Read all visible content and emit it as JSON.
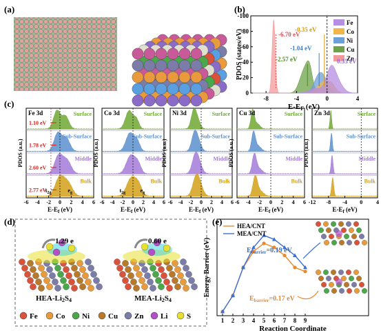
{
  "panels": {
    "a": {
      "label": "(a)"
    },
    "b": {
      "label": "(b)",
      "ylabel": "PDOS (states/eV)",
      "xlabel": "E-E",
      "xlabel_sub": "F",
      "xlabel_unit": " (eV)",
      "yticks": [
        "-100",
        "-80",
        "-60",
        "-40",
        "-20",
        "0"
      ],
      "xticks": [
        "-8",
        "-4",
        "0",
        "4"
      ],
      "legend": [
        {
          "name": "Fe",
          "color": "#b68ee2"
        },
        {
          "name": "Co",
          "color": "#f3b548"
        },
        {
          "name": "Ni",
          "color": "#6f9fd6"
        },
        {
          "name": "Cu",
          "color": "#6fa24a"
        },
        {
          "name": "Zn",
          "color": "#f29a9a"
        }
      ],
      "annotations": [
        {
          "text": "-6.70 eV",
          "color": "#e05050"
        },
        {
          "text": "-0.35 eV",
          "color": "#d79a10"
        },
        {
          "text": "-1.04 eV",
          "color": "#3e7cc4"
        },
        {
          "text": "-2.57 eV",
          "color": "#4b8a2b"
        },
        {
          "text": "0.35 eV",
          "color": "#9b6ad6"
        }
      ]
    },
    "c": {
      "label": "(c)",
      "ylabel": "PDOS (a.u.)",
      "xlabel": "E-E",
      "xlabel_sub": "f",
      "xlabel_unit": " (eV)",
      "layers": [
        "Surface",
        "Sub-Surface",
        "Middle",
        "Bulk"
      ],
      "layer_colors": [
        "#6fa832",
        "#5b8fce",
        "#a47ad8",
        "#d4a017"
      ],
      "subplots": [
        {
          "title": "Fe 3d",
          "xticks": [
            "-6",
            "-4",
            "-2",
            "0",
            "2",
            "4",
            "6"
          ],
          "gaps": [
            "1.10 eV",
            "1.78 eV",
            "2.60 eV",
            "2.77 eV"
          ],
          "t2g": "t",
          "t2g_sub": "2g",
          "eg": "e",
          "eg_sub": "g"
        },
        {
          "title": "Co 3d",
          "xticks": [
            "-6",
            "-4",
            "-2",
            "0",
            "2",
            "4",
            "6"
          ],
          "t2g": "t",
          "t2g_sub": "2g",
          "eg": "e",
          "eg_sub": "g"
        },
        {
          "title": "Ni 3d",
          "xticks": [
            "-6",
            "-4",
            "-2",
            "0",
            "2",
            "4",
            "6"
          ]
        },
        {
          "title": "Cu 3d",
          "xticks": [
            "-6",
            "-4",
            "-2",
            "0",
            "2",
            "4",
            "6"
          ]
        },
        {
          "title": "Zn 3d",
          "xticks": [
            "-12",
            "-8",
            "-4",
            "0",
            "4"
          ]
        }
      ]
    },
    "d": {
      "label": "(d)",
      "left": {
        "charge": "1.29 e",
        "caption": "HEA-Li",
        "caption_sub": "2",
        "caption_rest": "S",
        "caption_sub2": "4"
      },
      "right": {
        "charge": "0.60 e",
        "caption": "MEA-Li",
        "caption_sub": "2",
        "caption_rest": "S",
        "caption_sub2": "4"
      },
      "legend": [
        {
          "name": "Fe",
          "color": "#d9533c"
        },
        {
          "name": "Co",
          "color": "#e89a3c"
        },
        {
          "name": "Ni",
          "color": "#4aa84a"
        },
        {
          "name": "Cu",
          "color": "#b8792a"
        },
        {
          "name": "Zn",
          "color": "#7c7ca8"
        },
        {
          "name": "Li",
          "color": "#b44fc7"
        },
        {
          "name": "S",
          "color": "#e8e030"
        }
      ]
    },
    "e": {
      "label": "(e)"
    }
  },
  "chart_data": {
    "type": "line",
    "title": "",
    "xlabel": "Reaction Coordinate",
    "ylabel": "Energy Barrier (eV)",
    "x": [
      1,
      2,
      3,
      4,
      5,
      6,
      7,
      8,
      9
    ],
    "xlim": [
      1,
      9
    ],
    "ylim": [
      0,
      0.22
    ],
    "series": [
      {
        "name": "HEA/CNT",
        "color": "#e88a30",
        "marker": "circle",
        "values": [
          0.0,
          0.04,
          0.11,
          0.15,
          0.17,
          0.16,
          0.14,
          0.11,
          0.1
        ]
      },
      {
        "name": "MEA/CNT",
        "color": "#3a6fd4",
        "marker": "triangle",
        "values": [
          0.0,
          0.04,
          0.11,
          0.16,
          0.19,
          0.18,
          0.16,
          0.14,
          0.11
        ]
      }
    ],
    "annotations": [
      {
        "text": "E",
        "sub": "barrier",
        "rest": "=0.19 eV",
        "color": "#3a6fd4"
      },
      {
        "text": "E",
        "sub": "barrier",
        "rest": "=0.17 eV",
        "color": "#e88a30"
      }
    ]
  }
}
